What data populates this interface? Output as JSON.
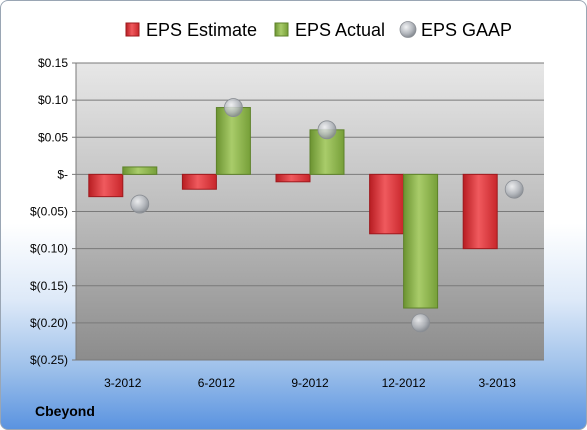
{
  "company": "Cbeyond",
  "colors": {
    "estimate": "#e0353a",
    "actual": "#8cb64a",
    "gaap": "#b8bcc2"
  },
  "chart_data": {
    "type": "bar",
    "categories": [
      "3-2012",
      "6-2012",
      "9-2012",
      "12-2012",
      "3-2013"
    ],
    "series": [
      {
        "name": "EPS Estimate",
        "kind": "bar",
        "values": [
          -0.03,
          -0.02,
          -0.01,
          -0.08,
          -0.1
        ]
      },
      {
        "name": "EPS Actual",
        "kind": "bar",
        "values": [
          0.01,
          0.09,
          0.06,
          -0.18,
          null
        ]
      },
      {
        "name": "EPS GAAP",
        "kind": "marker",
        "values": [
          -0.04,
          0.09,
          0.06,
          -0.2,
          -0.02
        ]
      }
    ],
    "ylim": [
      -0.25,
      0.15
    ],
    "yticks": [
      0.15,
      0.1,
      0.05,
      0,
      -0.05,
      -0.1,
      -0.15,
      -0.2,
      -0.25
    ],
    "ytick_labels": [
      "$0.15",
      "$0.10",
      "$0.05",
      "$-",
      "$(0.05)",
      "$(0.10)",
      "$(0.15)",
      "$(0.20)",
      "$(0.25)"
    ],
    "legend_position": "top",
    "grid": true
  }
}
